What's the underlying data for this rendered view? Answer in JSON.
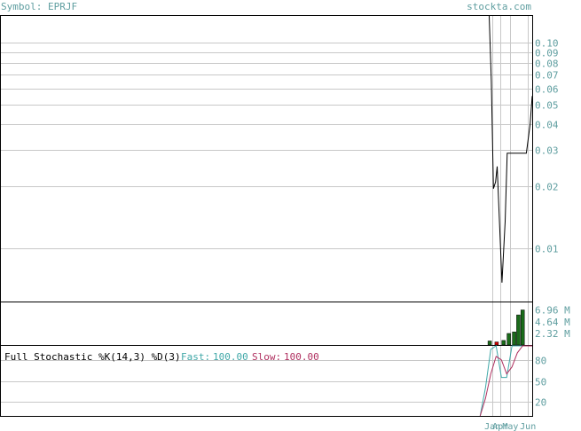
{
  "header": {
    "symbol_label": "Symbol: EPRJF",
    "site": "stockta.com"
  },
  "colors": {
    "header_text": "#5f9ea0",
    "grid": "#c8c8c8",
    "price_line": "#000000",
    "volume_up": "#1a6b1a",
    "volume_down": "#cc0000",
    "fast_line": "#40a8a8",
    "slow_line": "#b03060",
    "tick_text": "#5f9ea0"
  },
  "chart_data": [
    {
      "type": "line",
      "panel": "price",
      "scale": "log",
      "ylim": [
        0.0055,
        0.135
      ],
      "yticks": [
        0.1,
        0.09,
        0.08,
        0.07,
        0.06,
        0.05,
        0.04,
        0.03,
        0.02,
        0.01
      ],
      "ytick_labels": [
        "0.10",
        "0.09",
        "0.08",
        "0.07",
        "0.06",
        "0.05",
        "0.04",
        "0.03",
        "0.02",
        "0.01"
      ],
      "xlim": [
        0,
        100
      ],
      "x_ticks": [
        92.5,
        94.0,
        95.9,
        99.2
      ],
      "x_tick_labels": [
        "Jan",
        "Apr",
        "May",
        "Jun"
      ],
      "series": [
        {
          "x": [
            91.9,
            92.3,
            92.7,
            93.1,
            93.4,
            94.3,
            94.9,
            95.3,
            96.0,
            97.5,
            98.9,
            99.6,
            100
          ],
          "y": [
            0.14,
            0.065,
            0.0195,
            0.021,
            0.025,
            0.0068,
            0.0135,
            0.029,
            0.029,
            0.029,
            0.029,
            0.04,
            0.055
          ]
        }
      ]
    },
    {
      "type": "bar",
      "panel": "volume",
      "ylim": [
        0,
        8.5
      ],
      "yticks": [
        6.96,
        4.64,
        2.32
      ],
      "ytick_labels": [
        "6.96 M",
        "4.64 M",
        "2.32 M"
      ],
      "unit": "M",
      "bars": [
        {
          "x": 92.0,
          "value": 0.8,
          "dir": "up"
        },
        {
          "x": 93.3,
          "value": 0.6,
          "dir": "down"
        },
        {
          "x": 94.6,
          "value": 0.9,
          "dir": "up"
        },
        {
          "x": 95.6,
          "value": 2.3,
          "dir": "up"
        },
        {
          "x": 96.6,
          "value": 2.6,
          "dir": "up"
        },
        {
          "x": 97.4,
          "value": 6.0,
          "dir": "up"
        },
        {
          "x": 98.2,
          "value": 7.0,
          "dir": "up"
        }
      ]
    },
    {
      "type": "line",
      "panel": "stochastic",
      "title": "Full Stochastic %K(14,3) %D(3)",
      "fast_label": "Fast:",
      "fast_value": "100.00",
      "slow_label": "Slow:",
      "slow_value": "100.00",
      "ylim": [
        0,
        100
      ],
      "yticks": [
        80,
        50,
        20
      ],
      "ytick_labels": [
        "80",
        "50",
        "20"
      ],
      "series": [
        {
          "key": "fast",
          "x": [
            90.2,
            91.2,
            92.2,
            93.2,
            94.2,
            95.2,
            96.2,
            97.2,
            98.2,
            99.2,
            100
          ],
          "y": [
            0,
            40,
            95,
            100,
            55,
            55,
            100,
            100,
            100,
            100,
            100
          ]
        },
        {
          "key": "slow",
          "x": [
            90.2,
            91.2,
            92.2,
            93.2,
            94.2,
            95.2,
            96.2,
            97.2,
            98.2,
            99.2,
            100
          ],
          "y": [
            0,
            25,
            60,
            85,
            80,
            60,
            70,
            90,
            100,
            100,
            100
          ]
        }
      ]
    }
  ]
}
